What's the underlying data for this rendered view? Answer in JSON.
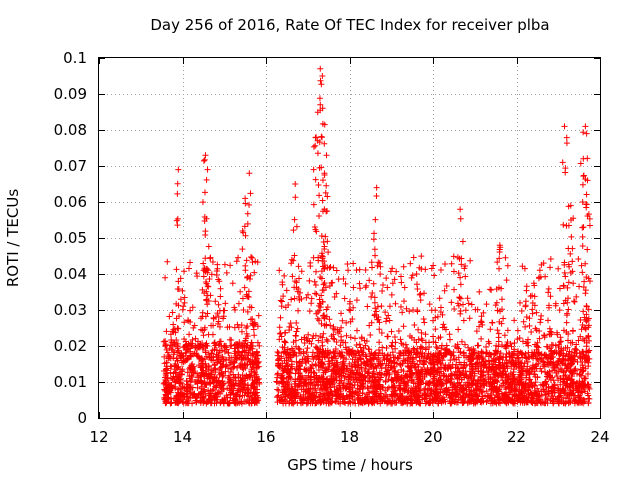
{
  "chart_data": {
    "type": "scatter",
    "title": "Day 256 of 2016, Rate Of TEC Index for receiver plba",
    "xlabel": "GPS time / hours",
    "ylabel": "ROTI / TECUs",
    "xlim": [
      12,
      24
    ],
    "ylim": [
      0,
      0.1
    ],
    "x_ticks": [
      12,
      14,
      16,
      18,
      20,
      22,
      24
    ],
    "y_ticks": [
      0,
      0.01,
      0.02,
      0.03,
      0.04,
      0.05,
      0.06,
      0.07,
      0.08,
      0.09,
      0.1
    ],
    "x_tick_labels": [
      "12",
      "14",
      "16",
      "18",
      "20",
      "22",
      "24"
    ],
    "y_tick_labels": [
      "0",
      "0.01",
      "0.02",
      "0.03",
      "0.04",
      "0.05",
      "0.06",
      "0.07",
      "0.08",
      "0.09",
      "0.1"
    ],
    "grid": true,
    "marker": "+",
    "color": "#ff0000",
    "series": [
      {
        "name": "ROTI",
        "segments": [
          {
            "x_start": 13.55,
            "x_end": 15.85,
            "typical": [
              0.004,
              0.02
            ],
            "spread_max": 0.045
          },
          {
            "x_start": 16.25,
            "x_end": 23.75,
            "typical": [
              0.004,
              0.018
            ],
            "spread_max": 0.045
          }
        ],
        "peaks": [
          {
            "x": 13.9,
            "y": 0.069
          },
          {
            "x": 14.55,
            "y": 0.073
          },
          {
            "x": 14.6,
            "y": 0.069
          },
          {
            "x": 15.6,
            "y": 0.068
          },
          {
            "x": 15.5,
            "y": 0.061
          },
          {
            "x": 16.7,
            "y": 0.065
          },
          {
            "x": 17.3,
            "y": 0.097
          },
          {
            "x": 17.35,
            "y": 0.095
          },
          {
            "x": 17.3,
            "y": 0.087
          },
          {
            "x": 17.2,
            "y": 0.078
          },
          {
            "x": 17.45,
            "y": 0.073
          },
          {
            "x": 17.4,
            "y": 0.068
          },
          {
            "x": 18.65,
            "y": 0.064
          },
          {
            "x": 20.65,
            "y": 0.058
          },
          {
            "x": 21.6,
            "y": 0.048
          },
          {
            "x": 23.15,
            "y": 0.081
          },
          {
            "x": 23.65,
            "y": 0.081
          },
          {
            "x": 23.6,
            "y": 0.072
          },
          {
            "x": 23.3,
            "y": 0.059
          },
          {
            "x": 23.7,
            "y": 0.066
          }
        ]
      }
    ]
  }
}
